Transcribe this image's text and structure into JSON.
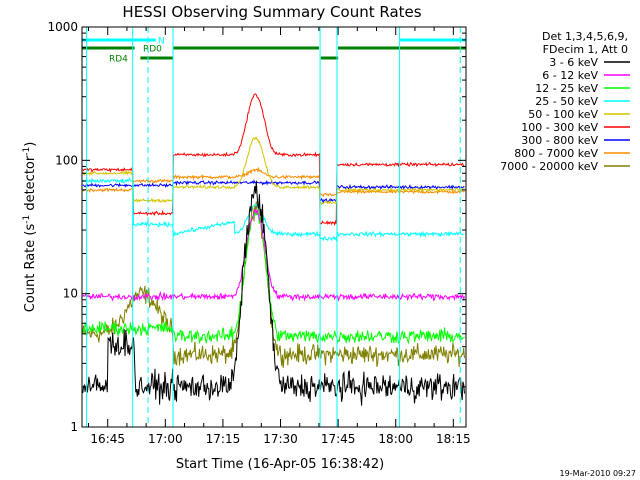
{
  "chart_data": {
    "type": "line",
    "title": "HESSI Observing Summary Count Rates",
    "xlabel": "Start Time (16-Apr-05 16:38:42)",
    "ylabel_main": "Count Rate (s",
    "ylabel_sup1": "-1",
    "ylabel_mid": " detector",
    "ylabel_sup2": "-1",
    "ylabel_end": ")",
    "y_scale": "log",
    "ylim": [
      1,
      1000
    ],
    "xlim_minutes": [
      -1.7,
      98.3
    ],
    "x_tick_labels": [
      "16:45",
      "17:00",
      "17:15",
      "17:30",
      "17:45",
      "18:00",
      "18:15"
    ],
    "x_tick_minutes": [
      5,
      20,
      35,
      50,
      65,
      80,
      95
    ],
    "y_tick_labels": [
      "1",
      "10",
      "100",
      "1000"
    ],
    "y_tick_values": [
      1,
      10,
      100,
      1000
    ],
    "legend_header": [
      "Det 1,3,4,5,6,9,",
      "FDecim 1, Att 0"
    ],
    "legend_position": "right",
    "series": [
      {
        "name": "3 - 6 keV",
        "color": "#000000"
      },
      {
        "name": "6 - 12 keV",
        "color": "#ff00ff"
      },
      {
        "name": "12 - 25 keV",
        "color": "#00ff00"
      },
      {
        "name": "25 - 50 keV",
        "color": "#00ffff"
      },
      {
        "name": "50 - 100 keV",
        "color": "#d4c400"
      },
      {
        "name": "100 - 300 keV",
        "color": "#ff0000"
      },
      {
        "name": "300 - 800 keV",
        "color": "#0000ff"
      },
      {
        "name": "800 - 7000 keV",
        "color": "#ff8c00"
      },
      {
        "name": "7000 - 20000 keV",
        "color": "#808000"
      }
    ],
    "flag_bars": [
      {
        "label": "N",
        "color": "#00ffff",
        "spans": [
          [
            -1.7,
            17.5
          ],
          [
            81,
            98.3
          ]
        ]
      },
      {
        "label": "RD0",
        "color": "#008000",
        "spans": [
          [
            -1.7,
            12
          ],
          [
            22,
            60
          ],
          [
            65,
            98.3
          ]
        ]
      },
      {
        "label": "RD4",
        "color": "#008000",
        "spans": [
          [
            13.5,
            22
          ],
          [
            60.5,
            65
          ]
        ]
      }
    ],
    "solid_lines_minutes": [
      -0.5,
      11.5,
      22,
      60.3,
      64.7,
      81
    ],
    "dashed_lines_minutes": [
      15.5,
      96.8
    ],
    "timestamp": "19-Mar-2010 09:27"
  }
}
